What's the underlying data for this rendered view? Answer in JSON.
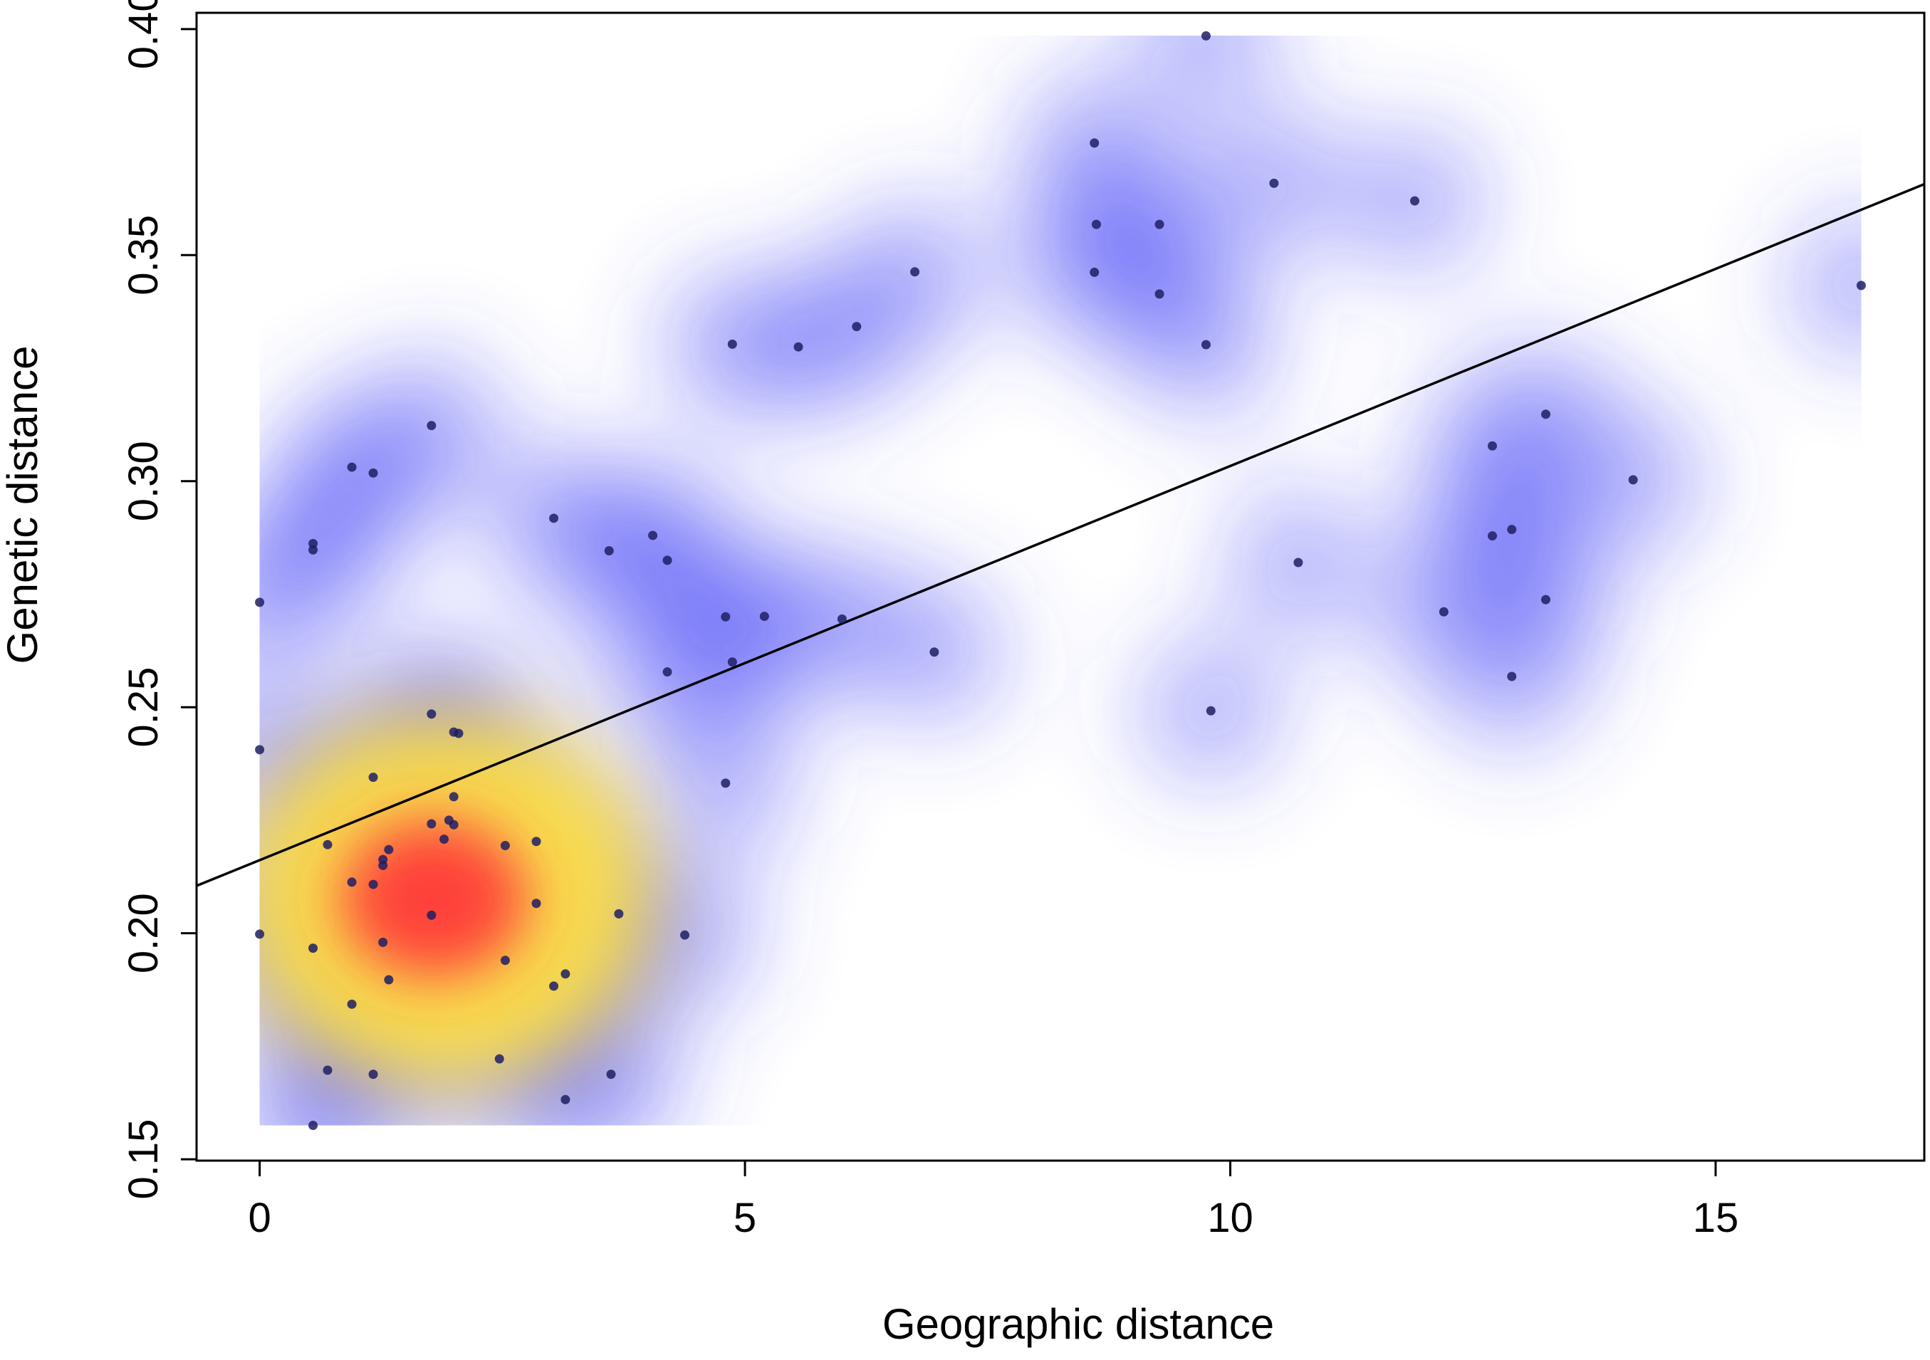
{
  "chart_data": {
    "type": "scatter",
    "title": "",
    "xlabel": "Geographic distance",
    "ylabel": "Genetic distance",
    "xlim": [
      -0.65,
      17.15
    ],
    "ylim": [
      0.1497,
      0.4036
    ],
    "xticks": [
      "0",
      "5",
      "10",
      "15"
    ],
    "yticks": [
      "0.15",
      "0.20",
      "0.25",
      "0.30",
      "0.35",
      "0.40"
    ],
    "grid": false,
    "legend": "none",
    "density_colors": {
      "background": "#ffffff",
      "low": "#3c3cf5",
      "mid": "#ffe040",
      "high": "#ff3838"
    },
    "point_color": "#1e1e64",
    "regression_line": {
      "x": [
        -0.65,
        17.15
      ],
      "y": [
        0.2105,
        0.3657
      ],
      "color": "#000000"
    },
    "series": [
      {
        "points": [
          [
            0.0,
            0.2732
          ],
          [
            0.0,
            0.2406
          ],
          [
            0.0,
            0.1998
          ],
          [
            0.55,
            0.2862
          ],
          [
            0.55,
            0.2848
          ],
          [
            0.55,
            0.1967
          ],
          [
            0.55,
            0.1575
          ],
          [
            0.7,
            0.2196
          ],
          [
            0.7,
            0.1697
          ],
          [
            0.95,
            0.3031
          ],
          [
            0.95,
            0.2113
          ],
          [
            0.95,
            0.1843
          ],
          [
            1.17,
            0.3018
          ],
          [
            1.17,
            0.2345
          ],
          [
            1.17,
            0.2108
          ],
          [
            1.17,
            0.1688
          ],
          [
            1.27,
            0.2163
          ],
          [
            1.27,
            0.215
          ],
          [
            1.27,
            0.198
          ],
          [
            1.33,
            0.2185
          ],
          [
            1.33,
            0.1897
          ],
          [
            1.77,
            0.3123
          ],
          [
            1.77,
            0.2485
          ],
          [
            1.77,
            0.2242
          ],
          [
            1.77,
            0.204
          ],
          [
            1.9,
            0.2208
          ],
          [
            1.95,
            0.225
          ],
          [
            2.0,
            0.2445
          ],
          [
            2.0,
            0.224
          ],
          [
            2.0,
            0.2302
          ],
          [
            2.05,
            0.2442
          ],
          [
            2.47,
            0.1722
          ],
          [
            2.53,
            0.2194
          ],
          [
            2.53,
            0.194
          ],
          [
            2.85,
            0.2203
          ],
          [
            2.85,
            0.2066
          ],
          [
            3.03,
            0.2918
          ],
          [
            3.03,
            0.1883
          ],
          [
            3.15,
            0.191
          ],
          [
            3.15,
            0.1632
          ],
          [
            3.6,
            0.2846
          ],
          [
            3.62,
            0.1688
          ],
          [
            3.7,
            0.2043
          ],
          [
            4.05,
            0.288
          ],
          [
            4.2,
            0.2825
          ],
          [
            4.2,
            0.2578
          ],
          [
            4.38,
            0.1996
          ],
          [
            4.8,
            0.27
          ],
          [
            4.8,
            0.2332
          ],
          [
            4.87,
            0.3303
          ],
          [
            4.87,
            0.26
          ],
          [
            5.2,
            0.2701
          ],
          [
            5.55,
            0.3297
          ],
          [
            6.0,
            0.2695
          ],
          [
            6.15,
            0.3342
          ],
          [
            6.75,
            0.3463
          ],
          [
            6.95,
            0.2622
          ],
          [
            8.6,
            0.3748
          ],
          [
            8.62,
            0.3568
          ],
          [
            8.6,
            0.3462
          ],
          [
            9.27,
            0.3568
          ],
          [
            9.27,
            0.3414
          ],
          [
            9.75,
            0.3985
          ],
          [
            9.75,
            0.3302
          ],
          [
            9.8,
            0.2492
          ],
          [
            10.45,
            0.3659
          ],
          [
            10.7,
            0.282
          ],
          [
            11.9,
            0.362
          ],
          [
            12.2,
            0.2711
          ],
          [
            12.7,
            0.3078
          ],
          [
            12.7,
            0.2879
          ],
          [
            12.9,
            0.2893
          ],
          [
            12.9,
            0.2568
          ],
          [
            13.25,
            0.3148
          ],
          [
            13.25,
            0.2738
          ],
          [
            14.15,
            0.3003
          ],
          [
            16.5,
            0.3433
          ]
        ]
      }
    ]
  }
}
